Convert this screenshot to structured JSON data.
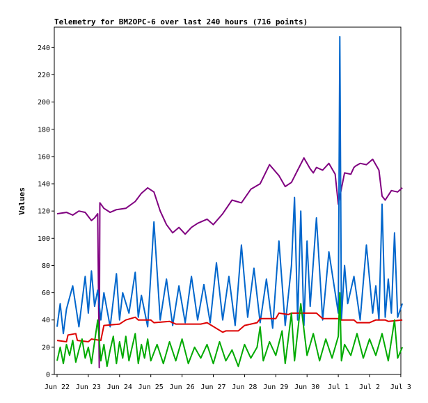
{
  "chart_data": {
    "type": "line",
    "title": "Telemetry for BM2OPC-6 over last 240 hours (716 points)",
    "xlabel": "",
    "ylabel": "Values",
    "xlim": [
      "Jun 22",
      "Jul 3"
    ],
    "ylim": [
      0,
      255
    ],
    "y_ticks": [
      0,
      20,
      40,
      60,
      80,
      100,
      120,
      140,
      160,
      180,
      200,
      220,
      240
    ],
    "x_ticks": [
      "Jun 22",
      "Jun 23",
      "Jun 24",
      "Jun 25",
      "Jun 26",
      "Jun 27",
      "Jun 28",
      "Jun 29",
      "Jun 30",
      "Jul 1",
      "Jul 2",
      "Jul 3"
    ],
    "grid": false,
    "legend": "none",
    "series": [
      {
        "color": "#800080",
        "x_days": [
          0.0,
          0.3,
          0.5,
          0.7,
          0.9,
          1.1,
          1.2,
          1.3,
          1.35,
          1.37,
          1.5,
          1.7,
          1.9,
          2.2,
          2.5,
          2.7,
          2.9,
          3.1,
          3.3,
          3.5,
          3.7,
          3.9,
          4.1,
          4.3,
          4.5,
          4.8,
          5.0,
          5.3,
          5.6,
          5.9,
          6.2,
          6.5,
          6.8,
          7.1,
          7.3,
          7.5,
          7.7,
          7.9,
          8.1,
          8.2,
          8.3,
          8.5,
          8.7,
          8.9,
          9.0,
          9.2,
          9.4,
          9.5,
          9.55,
          9.7,
          9.9,
          10.1,
          10.3,
          10.4,
          10.5,
          10.7,
          10.9,
          11.05
        ],
        "values": [
          118,
          119,
          117,
          120,
          119,
          113,
          115,
          118,
          5,
          126,
          122,
          119,
          121,
          122,
          127,
          133,
          137,
          134,
          120,
          110,
          104,
          108,
          103,
          108,
          111,
          114,
          110,
          118,
          128,
          126,
          136,
          140,
          154,
          146,
          138,
          141,
          150,
          159,
          151,
          148,
          152,
          150,
          155,
          147,
          125,
          148,
          147,
          152,
          153,
          155,
          154,
          158,
          150,
          131,
          128,
          135,
          134,
          137
        ]
      },
      {
        "color": "#0066cc",
        "x_days": [
          0.0,
          0.1,
          0.2,
          0.3,
          0.5,
          0.7,
          0.9,
          1.0,
          1.1,
          1.2,
          1.3,
          1.4,
          1.5,
          1.7,
          1.9,
          2.0,
          2.1,
          2.3,
          2.5,
          2.6,
          2.7,
          2.9,
          3.1,
          3.3,
          3.5,
          3.7,
          3.9,
          4.1,
          4.3,
          4.5,
          4.7,
          4.9,
          5.1,
          5.3,
          5.5,
          5.7,
          5.9,
          6.1,
          6.3,
          6.5,
          6.7,
          6.9,
          7.1,
          7.3,
          7.5,
          7.6,
          7.7,
          7.8,
          7.9,
          8.0,
          8.1,
          8.3,
          8.5,
          8.7,
          8.9,
          9.0,
          9.05,
          9.1,
          9.2,
          9.3,
          9.5,
          9.7,
          9.9,
          10.1,
          10.2,
          10.3,
          10.4,
          10.5,
          10.6,
          10.7,
          10.8,
          10.9,
          11.05
        ],
        "values": [
          35,
          52,
          30,
          48,
          65,
          35,
          72,
          45,
          76,
          50,
          62,
          40,
          60,
          35,
          74,
          40,
          60,
          45,
          75,
          42,
          58,
          35,
          112,
          40,
          70,
          36,
          65,
          38,
          72,
          40,
          66,
          38,
          82,
          40,
          72,
          36,
          95,
          42,
          78,
          38,
          70,
          34,
          98,
          36,
          80,
          130,
          40,
          120,
          36,
          98,
          50,
          115,
          40,
          90,
          60,
          45,
          248,
          40,
          80,
          52,
          72,
          40,
          95,
          45,
          65,
          40,
          125,
          42,
          70,
          45,
          104,
          42,
          52
        ]
      },
      {
        "color": "#dd0000",
        "x_days": [
          0.0,
          0.3,
          0.35,
          0.6,
          0.65,
          1.0,
          1.1,
          1.4,
          1.5,
          2.0,
          2.2,
          2.5,
          2.6,
          3.0,
          3.1,
          3.6,
          3.8,
          4.6,
          4.8,
          5.3,
          5.4,
          5.8,
          6.0,
          6.4,
          6.5,
          7.0,
          7.1,
          7.4,
          7.5,
          8.3,
          8.5,
          9.0,
          9.1,
          9.5,
          9.6,
          10.0,
          10.2,
          10.5,
          10.6,
          11.05
        ],
        "values": [
          25,
          24,
          29,
          30,
          25,
          24,
          26,
          25,
          36,
          37,
          40,
          42,
          40,
          40,
          38,
          39,
          37,
          37,
          38,
          31,
          32,
          32,
          36,
          38,
          41,
          41,
          45,
          44,
          45,
          45,
          41,
          41,
          40,
          40,
          38,
          38,
          40,
          40,
          39,
          40
        ]
      },
      {
        "color": "#00aa00",
        "x_days": [
          0.0,
          0.1,
          0.2,
          0.3,
          0.4,
          0.5,
          0.6,
          0.7,
          0.8,
          0.9,
          1.0,
          1.1,
          1.2,
          1.3,
          1.4,
          1.5,
          1.6,
          1.7,
          1.8,
          1.9,
          2.0,
          2.1,
          2.2,
          2.3,
          2.4,
          2.5,
          2.6,
          2.7,
          2.8,
          2.9,
          3.0,
          3.2,
          3.4,
          3.6,
          3.8,
          4.0,
          4.2,
          4.4,
          4.6,
          4.8,
          5.0,
          5.2,
          5.4,
          5.6,
          5.8,
          6.0,
          6.2,
          6.4,
          6.5,
          6.6,
          6.8,
          7.0,
          7.2,
          7.3,
          7.5,
          7.6,
          7.8,
          8.0,
          8.2,
          8.4,
          8.6,
          8.8,
          9.0,
          9.05,
          9.1,
          9.2,
          9.4,
          9.6,
          9.8,
          10.0,
          10.2,
          10.4,
          10.6,
          10.8,
          10.9,
          11.05
        ],
        "values": [
          10,
          20,
          8,
          22,
          14,
          25,
          9,
          18,
          26,
          12,
          20,
          8,
          24,
          40,
          10,
          22,
          6,
          18,
          28,
          8,
          24,
          12,
          28,
          10,
          20,
          30,
          8,
          22,
          12,
          26,
          10,
          22,
          8,
          24,
          10,
          26,
          8,
          20,
          12,
          22,
          8,
          24,
          10,
          18,
          6,
          22,
          12,
          20,
          35,
          10,
          24,
          14,
          32,
          8,
          45,
          10,
          52,
          14,
          30,
          10,
          26,
          12,
          28,
          60,
          10,
          22,
          14,
          30,
          12,
          26,
          14,
          30,
          10,
          40,
          12,
          20
        ]
      }
    ]
  }
}
